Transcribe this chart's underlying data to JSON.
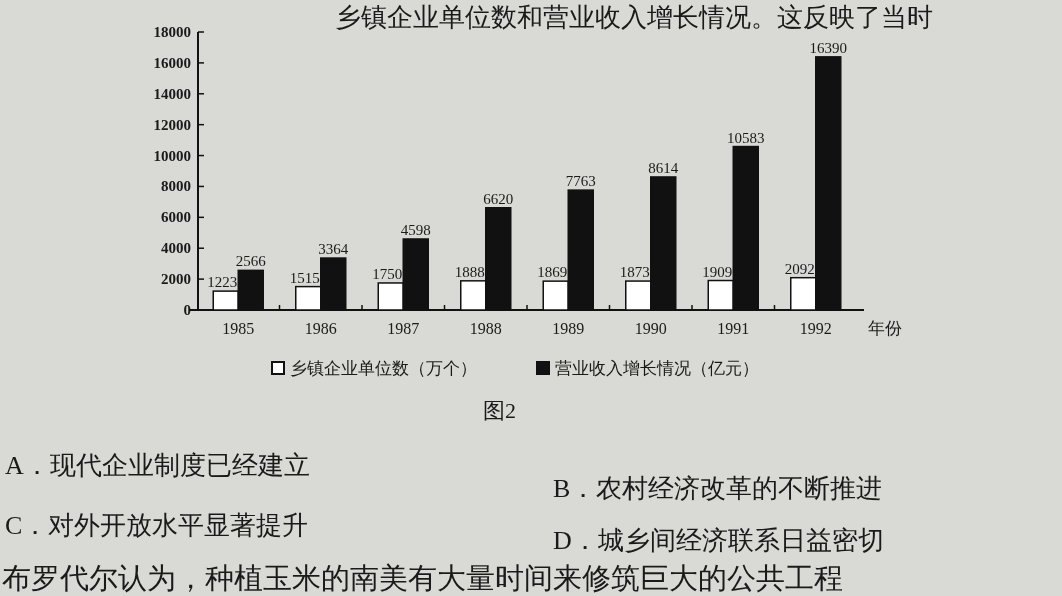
{
  "chart_data": {
    "type": "bar",
    "categories": [
      "1985",
      "1986",
      "1987",
      "1988",
      "1989",
      "1990",
      "1991",
      "1992"
    ],
    "series": [
      {
        "name": "乡镇企业单位数（万个）",
        "color": "#ffffff",
        "values": [
          1223,
          1515,
          1750,
          1888,
          1869,
          1873,
          1909,
          2092
        ]
      },
      {
        "name": "营业收入增长情况（亿元）",
        "color": "#111111",
        "values": [
          2566,
          3364,
          4598,
          6620,
          7763,
          8614,
          10583,
          16390
        ]
      }
    ],
    "xlabel": "年份",
    "ylim": [
      0,
      18000
    ],
    "yticks": [
      0,
      2000,
      4000,
      6000,
      8000,
      10000,
      12000,
      14000,
      16000,
      18000
    ],
    "data_labels": true,
    "legend": "bottom",
    "annotations": [
      "乡镇企业单位数和营业收入增长情况。这反映了当时",
      "图2",
      "A．现代企业制度已经建立",
      "B．农村经济改革的不断推进",
      "C．对外开放水平显著提升",
      "D．城乡间经济联系日益密切",
      "布罗代尔认为，种植玉米的南美有大量时间来修筑巨大的公共工程"
    ]
  }
}
